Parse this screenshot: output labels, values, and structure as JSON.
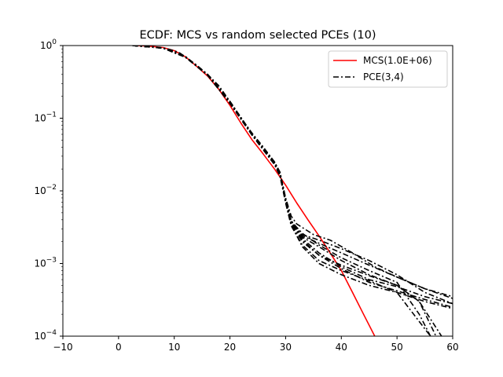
{
  "chart_data": {
    "type": "line",
    "title": "ECDF: MCS vs random selected PCEs (10)",
    "xlabel": "",
    "ylabel": "",
    "xlim": [
      -10,
      60
    ],
    "ylim": [
      0.0001,
      1
    ],
    "yscale": "log",
    "grid": false,
    "legend_position": "top-right",
    "x_ticks": [
      -10,
      0,
      10,
      20,
      30,
      40,
      50,
      60
    ],
    "x_tick_labels": [
      "−10",
      "0",
      "10",
      "20",
      "30",
      "40",
      "50",
      "60"
    ],
    "y_ticks": [
      0.0001,
      0.001,
      0.01,
      0.1,
      1
    ],
    "y_tick_labels": [
      {
        "base": "10",
        "exp": "−4"
      },
      {
        "base": "10",
        "exp": "−3"
      },
      {
        "base": "10",
        "exp": "−2"
      },
      {
        "base": "10",
        "exp": "−1"
      },
      {
        "base": "10",
        "exp": "0"
      }
    ],
    "legend": [
      {
        "name": "MCS(1.0E+06)",
        "color": "#ff0000",
        "style": "solid"
      },
      {
        "name": "PCE(3,4)",
        "color": "#000000",
        "style": "dashdot"
      }
    ],
    "series": [
      {
        "name": "MCS(1.0E+06)",
        "color": "#ff0000",
        "style": "solid",
        "x": [
          2.5,
          5,
          8,
          10,
          12,
          14,
          16,
          18,
          20,
          22,
          24,
          26,
          28,
          30,
          32,
          34,
          36,
          38,
          40,
          42,
          44,
          46
        ],
        "y": [
          1.0,
          0.99,
          0.94,
          0.85,
          0.7,
          0.52,
          0.38,
          0.25,
          0.15,
          0.085,
          0.05,
          0.032,
          0.02,
          0.012,
          0.0068,
          0.004,
          0.0024,
          0.0014,
          0.0008,
          0.0004,
          0.0002,
          0.0001
        ]
      },
      {
        "name": "PCE(3,4)",
        "color": "#000000",
        "style": "dashdot",
        "x": [
          2.5,
          5,
          8,
          10,
          11,
          12,
          14,
          16,
          18,
          20,
          22,
          24,
          26,
          28,
          29,
          30,
          31,
          32,
          35,
          38,
          42,
          46,
          50,
          55,
          60
        ],
        "y": [
          1.0,
          0.98,
          0.93,
          0.85,
          0.79,
          0.7,
          0.54,
          0.4,
          0.28,
          0.17,
          0.1,
          0.062,
          0.04,
          0.025,
          0.018,
          0.008,
          0.0045,
          0.0035,
          0.0025,
          0.0021,
          0.0014,
          0.0009,
          0.00065,
          0.00045,
          0.00033
        ]
      },
      {
        "name": "",
        "color": "#000000",
        "style": "dashdot",
        "x": [
          2.5,
          8,
          12,
          16,
          20,
          24,
          28,
          29,
          30,
          31,
          33,
          36,
          40,
          45,
          50,
          54,
          56
        ],
        "y": [
          1.0,
          0.92,
          0.69,
          0.39,
          0.16,
          0.058,
          0.023,
          0.016,
          0.007,
          0.0038,
          0.0026,
          0.0018,
          0.0012,
          0.0008,
          0.00055,
          0.0002,
          0.0001
        ]
      },
      {
        "name": "",
        "color": "#000000",
        "style": "dashdot",
        "x": [
          2.5,
          8,
          12,
          16,
          20,
          24,
          28,
          29,
          30,
          31,
          33,
          36,
          40,
          45,
          50,
          55,
          60
        ],
        "y": [
          1.0,
          0.93,
          0.7,
          0.4,
          0.17,
          0.06,
          0.024,
          0.017,
          0.0072,
          0.0036,
          0.0022,
          0.0014,
          0.0009,
          0.0006,
          0.00048,
          0.00035,
          0.00028
        ]
      },
      {
        "name": "",
        "color": "#000000",
        "style": "dashdot",
        "x": [
          2.5,
          8,
          12,
          16,
          20,
          24,
          28,
          29,
          30,
          31,
          33,
          36,
          40,
          45,
          50,
          54,
          57
        ],
        "y": [
          1.0,
          0.92,
          0.7,
          0.39,
          0.16,
          0.059,
          0.024,
          0.016,
          0.0075,
          0.0037,
          0.0023,
          0.0017,
          0.0011,
          0.0007,
          0.0005,
          0.0003,
          0.0001
        ]
      },
      {
        "name": "",
        "color": "#000000",
        "style": "dashdot",
        "x": [
          2.5,
          8,
          12,
          16,
          20,
          24,
          28,
          29,
          30,
          31,
          33,
          36,
          40,
          45,
          50,
          55,
          60
        ],
        "y": [
          1.0,
          0.93,
          0.71,
          0.4,
          0.17,
          0.061,
          0.025,
          0.018,
          0.0078,
          0.0038,
          0.0021,
          0.0013,
          0.00085,
          0.00055,
          0.00042,
          0.00032,
          0.00025
        ]
      },
      {
        "name": "",
        "color": "#000000",
        "style": "dashdot",
        "x": [
          2.5,
          8,
          12,
          16,
          20,
          24,
          28,
          29,
          30,
          31,
          33,
          36,
          40,
          45,
          50,
          53,
          56
        ],
        "y": [
          1.0,
          0.92,
          0.69,
          0.39,
          0.16,
          0.058,
          0.023,
          0.016,
          0.0068,
          0.0033,
          0.0018,
          0.0011,
          0.0008,
          0.00058,
          0.0004,
          0.0002,
          0.0001
        ]
      },
      {
        "name": "",
        "color": "#000000",
        "style": "dashdot",
        "x": [
          2.5,
          8,
          12,
          16,
          20,
          24,
          28,
          29,
          30,
          31,
          33,
          36,
          40,
          45,
          50,
          55,
          60
        ],
        "y": [
          1.0,
          0.93,
          0.7,
          0.4,
          0.17,
          0.06,
          0.025,
          0.017,
          0.0074,
          0.0037,
          0.0024,
          0.0019,
          0.0014,
          0.00095,
          0.00065,
          0.00045,
          0.00035
        ]
      },
      {
        "name": "",
        "color": "#000000",
        "style": "dashdot",
        "x": [
          2.5,
          8,
          12,
          16,
          20,
          24,
          28,
          29,
          30,
          31,
          33,
          36,
          40,
          45,
          50,
          55,
          60
        ],
        "y": [
          1.0,
          0.92,
          0.7,
          0.39,
          0.16,
          0.059,
          0.024,
          0.017,
          0.0071,
          0.0034,
          0.0017,
          0.001,
          0.0007,
          0.0005,
          0.0004,
          0.0003,
          0.00024
        ]
      },
      {
        "name": "",
        "color": "#000000",
        "style": "dashdot",
        "x": [
          2.5,
          8,
          12,
          16,
          20,
          24,
          28,
          29,
          30,
          31,
          33,
          36,
          40,
          45,
          50,
          55,
          60
        ],
        "y": [
          1.0,
          0.93,
          0.7,
          0.4,
          0.17,
          0.06,
          0.024,
          0.017,
          0.0076,
          0.0039,
          0.0025,
          0.0021,
          0.0016,
          0.0011,
          0.0007,
          0.0004,
          0.00028
        ]
      },
      {
        "name": "",
        "color": "#000000",
        "style": "dashdot",
        "x": [
          2.5,
          8,
          12,
          16,
          20,
          24,
          28,
          29,
          30,
          31,
          33,
          36,
          40,
          45,
          50,
          54,
          58
        ],
        "y": [
          1.0,
          0.92,
          0.7,
          0.39,
          0.16,
          0.059,
          0.024,
          0.016,
          0.0073,
          0.0035,
          0.002,
          0.0013,
          0.00095,
          0.00068,
          0.0005,
          0.0003,
          0.0001
        ]
      }
    ]
  }
}
